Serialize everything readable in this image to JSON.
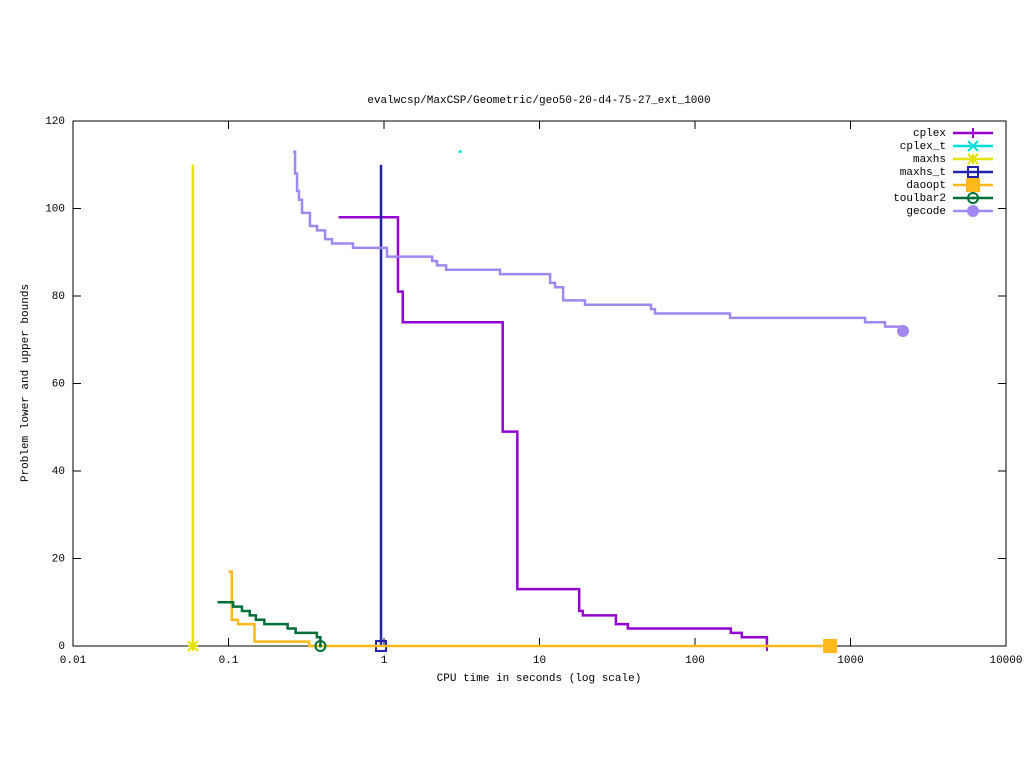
{
  "chart_data": {
    "type": "step",
    "title": "evalwcsp/MaxCSP/Geometric/geo50-20-d4-75-27_ext_1000",
    "xlabel": "CPU time in seconds (log scale)",
    "ylabel": "Problem lower and upper bounds",
    "xscale": "log",
    "xlim": [
      0.01,
      10000
    ],
    "xticks": [
      0.01,
      0.1,
      1,
      10,
      100,
      1000,
      10000
    ],
    "ylim": [
      0,
      120
    ],
    "yticks": [
      0,
      20,
      40,
      60,
      80,
      100,
      120
    ],
    "legend": "upper right",
    "series": [
      {
        "name": "cplex",
        "color": "#9400d3",
        "marker": "plus",
        "x": [
          0.51,
          1.23,
          1.32,
          5.8,
          7.2,
          18,
          19,
          31,
          37,
          170,
          200,
          290
        ],
        "values": [
          98,
          81,
          74,
          49,
          13,
          8,
          7,
          5,
          4,
          3,
          2,
          0
        ]
      },
      {
        "name": "cplex_t",
        "color": "#00dede",
        "marker": "cross",
        "x": [
          3.1
        ],
        "values": [
          113
        ]
      },
      {
        "name": "maxhs",
        "color": "#e6e000",
        "marker": "star",
        "x": [
          0.059,
          0.059
        ],
        "values": [
          110,
          0
        ]
      },
      {
        "name": "maxhs_t",
        "color": "#2222aa",
        "marker": "square",
        "x": [
          0.957,
          0.957
        ],
        "values": [
          110,
          0
        ]
      },
      {
        "name": "daoopt",
        "color": "#ffb81c",
        "marker": "filled-square",
        "x": [
          0.1,
          0.105,
          0.115,
          0.147,
          0.33,
          740
        ],
        "values": [
          17,
          6,
          5,
          1,
          0,
          0
        ]
      },
      {
        "name": "toulbar2",
        "color": "#007038",
        "marker": "circle",
        "x": [
          0.085,
          0.107,
          0.122,
          0.137,
          0.15,
          0.17,
          0.24,
          0.27,
          0.37,
          0.39
        ],
        "values": [
          10,
          9,
          8,
          7,
          6,
          5,
          4,
          3,
          2,
          0
        ]
      },
      {
        "name": "gecode",
        "color": "#a088f0",
        "marker": "filled-circle",
        "x": [
          0.26,
          0.268,
          0.276,
          0.284,
          0.297,
          0.334,
          0.371,
          0.418,
          0.463,
          0.632,
          1.045,
          2.04,
          2.19,
          2.51,
          5.57,
          11.7,
          12.6,
          14.2,
          19.6,
          52.1,
          55.3,
          168,
          1240,
          1667,
          2176
        ],
        "values": [
          113,
          108,
          104,
          102,
          99,
          96,
          95,
          93,
          92,
          91,
          89,
          88,
          87,
          86,
          85,
          83,
          82,
          79,
          78,
          77,
          76,
          75,
          74,
          73,
          72
        ]
      }
    ]
  }
}
